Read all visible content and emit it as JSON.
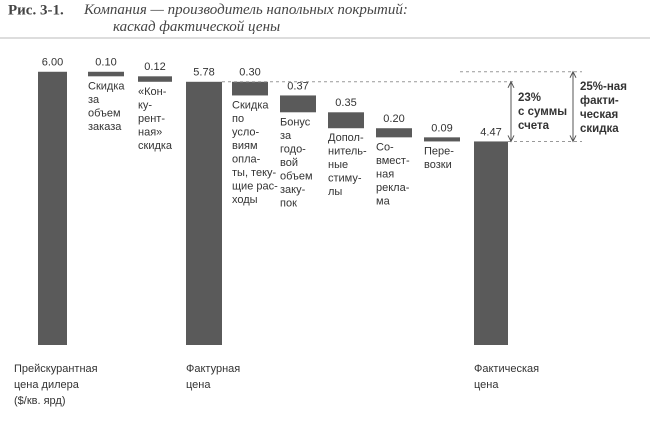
{
  "chart_data": {
    "type": "waterfall",
    "figure_label": "Рис. 3-1.",
    "title": "Компания — производитель напольных покрытий:\nкаскад фактической цены",
    "categories": [
      "Прейскурантная\nцена дилера\n($/кв. ярд)",
      "Скидка\nза\nобъем\nзаказа",
      "«Кон-\nку-\nрент-\nная»\nскидка",
      "Фактурная\nцена",
      "Скидка\nпо\nусло-\nвиям\nопла-\nты, теку-\nщие рас-\nходы",
      "Бонус\nза\nгодо-\nвой\nобъем\nзаку-\nпок",
      "Допол-\nнитель-\nные\nстиму-\nлы",
      "Со-\nвмест-\nная\nрекла-\nма",
      "Пере-\nвозки",
      "Фактическая\nцена"
    ],
    "values": [
      6.0,
      0.1,
      0.12,
      5.78,
      0.3,
      0.37,
      0.35,
      0.2,
      0.09,
      4.47
    ],
    "value_labels": [
      "6.00",
      "0.10",
      "0.12",
      "5.78",
      "0.30",
      "0.37",
      "0.35",
      "0.20",
      "0.09",
      "4.47"
    ],
    "total_indices": [
      0,
      3,
      9
    ],
    "color": "#5a5a5a",
    "ylim": [
      0,
      6.5
    ],
    "annotations": [
      "23%\nс суммы\nсчета",
      "25%-ная\nфакти-\nческая\nскидка"
    ]
  }
}
